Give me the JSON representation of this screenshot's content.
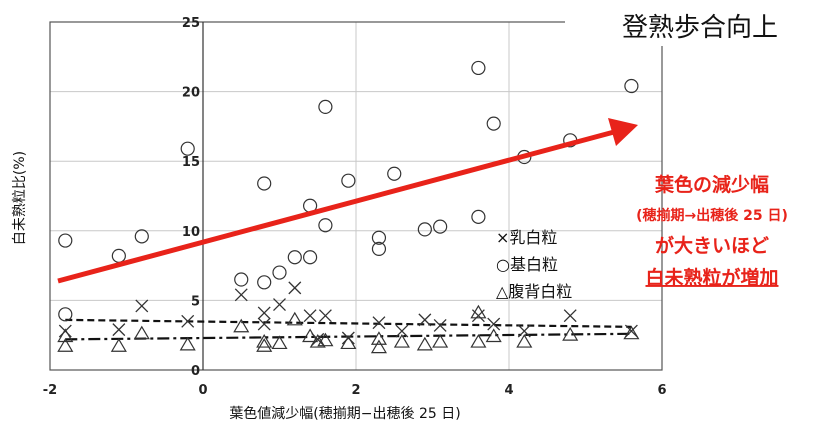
{
  "chart_data": {
    "type": "scatter",
    "xlabel": "葉色値減少幅(穂揃期−出穂後 25 日)",
    "ylabel": "白未熟粒比(%)",
    "xlim": [
      -2,
      6
    ],
    "ylim": [
      0,
      25
    ],
    "x_ticks": [
      "-2",
      "0",
      "2",
      "4",
      "6"
    ],
    "y_ticks": [
      "0",
      "5",
      "10",
      "15",
      "20",
      "25"
    ],
    "grid": true,
    "legend": [
      "×乳白粒",
      "○基白粒",
      "△腹背白粒"
    ],
    "series": [
      {
        "name": "×乳白粒",
        "marker": "x",
        "points": [
          [
            -1.8,
            2.8
          ],
          [
            -1.1,
            2.9
          ],
          [
            -0.8,
            4.6
          ],
          [
            -0.2,
            3.5
          ],
          [
            0.5,
            5.4
          ],
          [
            0.8,
            4.1
          ],
          [
            0.8,
            3.3
          ],
          [
            1.0,
            4.7
          ],
          [
            1.2,
            5.9
          ],
          [
            1.4,
            3.9
          ],
          [
            1.5,
            2.2
          ],
          [
            1.6,
            3.9
          ],
          [
            1.9,
            2.3
          ],
          [
            2.3,
            3.4
          ],
          [
            2.6,
            2.8
          ],
          [
            2.9,
            3.6
          ],
          [
            3.1,
            3.2
          ],
          [
            3.6,
            3.9
          ],
          [
            3.8,
            3.3
          ],
          [
            4.2,
            2.8
          ],
          [
            4.8,
            3.9
          ],
          [
            5.6,
            2.8
          ]
        ]
      },
      {
        "name": "○基白粒",
        "marker": "circle",
        "points": [
          [
            -1.8,
            9.3
          ],
          [
            -1.8,
            4.0
          ],
          [
            -1.1,
            8.2
          ],
          [
            -0.8,
            9.6
          ],
          [
            -0.2,
            15.9
          ],
          [
            0.5,
            6.5
          ],
          [
            0.8,
            13.4
          ],
          [
            0.8,
            6.3
          ],
          [
            1.0,
            7.0
          ],
          [
            1.2,
            8.1
          ],
          [
            1.4,
            11.8
          ],
          [
            1.4,
            8.1
          ],
          [
            1.6,
            18.9
          ],
          [
            1.6,
            10.4
          ],
          [
            1.9,
            13.6
          ],
          [
            2.3,
            9.5
          ],
          [
            2.3,
            8.7
          ],
          [
            2.5,
            14.1
          ],
          [
            2.9,
            10.1
          ],
          [
            3.1,
            10.3
          ],
          [
            3.6,
            21.7
          ],
          [
            3.6,
            11.0
          ],
          [
            3.8,
            17.7
          ],
          [
            4.2,
            15.3
          ],
          [
            4.8,
            16.5
          ],
          [
            5.6,
            20.4
          ]
        ]
      },
      {
        "name": "△腹背白粒",
        "marker": "triangle",
        "points": [
          [
            -1.8,
            1.7
          ],
          [
            -1.8,
            2.4
          ],
          [
            -1.1,
            1.7
          ],
          [
            -0.8,
            2.6
          ],
          [
            -0.2,
            1.8
          ],
          [
            0.5,
            3.1
          ],
          [
            0.8,
            2.0
          ],
          [
            0.8,
            1.7
          ],
          [
            1.0,
            1.9
          ],
          [
            1.2,
            3.6
          ],
          [
            1.4,
            2.4
          ],
          [
            1.5,
            2.0
          ],
          [
            1.6,
            2.1
          ],
          [
            1.9,
            1.9
          ],
          [
            2.3,
            1.6
          ],
          [
            2.3,
            2.2
          ],
          [
            2.6,
            2.0
          ],
          [
            2.9,
            1.8
          ],
          [
            3.1,
            2.0
          ],
          [
            3.6,
            4.1
          ],
          [
            3.6,
            2.0
          ],
          [
            3.8,
            2.4
          ],
          [
            4.2,
            2.0
          ],
          [
            4.8,
            2.5
          ],
          [
            5.6,
            2.6
          ]
        ]
      }
    ],
    "trend_lines": [
      {
        "style": "dashed",
        "x": [
          -1.8,
          5.6
        ],
        "y": [
          3.6,
          3.1
        ]
      },
      {
        "style": "dash-dot",
        "x": [
          -1.8,
          5.6
        ],
        "y": [
          2.2,
          2.6
        ]
      }
    ],
    "annotations": {
      "arrow_label": "登熟歩合向上",
      "red_text": [
        "葉色の減少幅",
        "(穂揃期→出穂後 25 日)",
        "が大きいほど",
        "白未熟粒が増加"
      ],
      "arrow_color": "#e8231a"
    }
  }
}
